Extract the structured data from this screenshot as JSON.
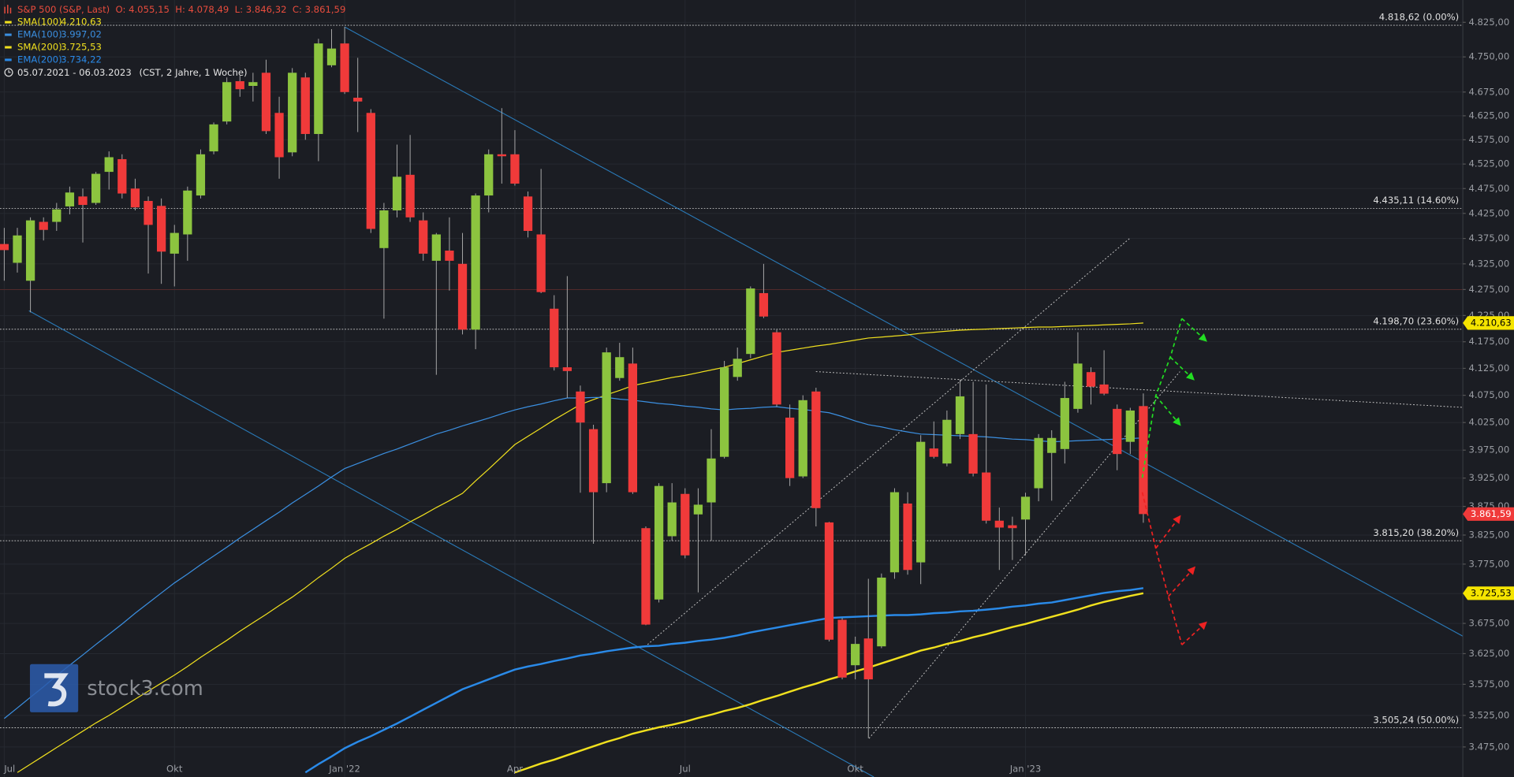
{
  "chart_data": {
    "type": "candlestick",
    "title": "S&P 500 (S&P, Last)",
    "ohlc_labels": [
      "O: 4.055,15",
      "H: 4.078,49",
      "L: 3.846,32",
      "C: 3.861,59"
    ],
    "date_range": "05.07.2021 - 06.03.2023",
    "range_info": "(CST, 2 Jahre, 1 Woche)",
    "watermark": "stock3.com",
    "log_scale": true,
    "grid": true,
    "up_color": "#8cc43f",
    "down_color": "#f03a3a",
    "ylim": [
      3428,
      4874
    ],
    "yticks": [
      {
        "value": 4825,
        "label": "4.825,00"
      },
      {
        "value": 4750,
        "label": "4.750,00"
      },
      {
        "value": 4675,
        "label": "4.675,00"
      },
      {
        "value": 4625,
        "label": "4.625,00"
      },
      {
        "value": 4575,
        "label": "4.575,00"
      },
      {
        "value": 4525,
        "label": "4.525,00"
      },
      {
        "value": 4475,
        "label": "4.475,00"
      },
      {
        "value": 4425,
        "label": "4.425,00"
      },
      {
        "value": 4375,
        "label": "4.375,00"
      },
      {
        "value": 4325,
        "label": "4.325,00"
      },
      {
        "value": 4275,
        "label": "4.275,00"
      },
      {
        "value": 4225,
        "label": "4.225,00"
      },
      {
        "value": 4175,
        "label": "4.175,00"
      },
      {
        "value": 4125,
        "label": "4.125,00"
      },
      {
        "value": 4075,
        "label": "4.075,00"
      },
      {
        "value": 4025,
        "label": "4.025,00"
      },
      {
        "value": 3975,
        "label": "3.975,00"
      },
      {
        "value": 3925,
        "label": "3.925,00"
      },
      {
        "value": 3875,
        "label": "3.875,00"
      },
      {
        "value": 3825,
        "label": "3.825,00"
      },
      {
        "value": 3775,
        "label": "3.775,00"
      },
      {
        "value": 3725,
        "label": "3.725,00"
      },
      {
        "value": 3675,
        "label": "3.675,00"
      },
      {
        "value": 3625,
        "label": "3.625,00"
      },
      {
        "value": 3575,
        "label": "3.575,00"
      },
      {
        "value": 3525,
        "label": "3.525,00"
      },
      {
        "value": 3475,
        "label": "3.475,00"
      }
    ],
    "levels": [
      {
        "value": 4818.62,
        "label": "4.818,62 (0.00%)"
      },
      {
        "value": 4435.11,
        "label": "4.435,11 (14.60%)"
      },
      {
        "value": 4198.7,
        "label": "4.198,70 (23.60%)"
      },
      {
        "value": 3815.2,
        "label": "3.815,20 (38.20%)"
      },
      {
        "value": 3505.24,
        "label": "3.505,24 (50.00%)"
      }
    ],
    "price_tags": [
      {
        "value": 4210.63,
        "label": "4.210,63",
        "color": "#f5e400",
        "text_color": "#000000"
      },
      {
        "value": 3861.59,
        "label": "3.861,59",
        "color": "#f03a3a",
        "text_color": "#ffffff"
      },
      {
        "value": 3725.53,
        "label": "3.725,53",
        "color": "#f5e400",
        "text_color": "#000000"
      }
    ],
    "categories": [
      "Jul",
      null,
      null,
      null,
      null,
      null,
      null,
      null,
      null,
      null,
      null,
      null,
      null,
      "Okt",
      null,
      null,
      null,
      null,
      null,
      null,
      null,
      null,
      null,
      null,
      null,
      null,
      "Jan '22",
      null,
      null,
      null,
      null,
      null,
      null,
      null,
      null,
      null,
      null,
      null,
      null,
      "Apr",
      null,
      null,
      null,
      null,
      null,
      null,
      null,
      null,
      null,
      null,
      null,
      null,
      "Jul",
      null,
      null,
      null,
      null,
      null,
      null,
      null,
      null,
      null,
      null,
      null,
      null,
      "Okt",
      null,
      null,
      null,
      null,
      null,
      null,
      null,
      null,
      null,
      null,
      null,
      null,
      "Jan '23",
      null,
      null,
      null,
      null,
      null,
      null,
      null,
      null,
      null
    ],
    "open": [
      4364,
      4327,
      4292,
      4408,
      4408,
      4439,
      4459,
      4446,
      4509,
      4535,
      4475,
      4450,
      4440,
      4345,
      4383,
      4461,
      4551,
      4613,
      4698,
      4688,
      4716,
      4631,
      4549,
      4706,
      4587,
      4732,
      4779,
      4663,
      4631,
      4356,
      4431,
      4503,
      4411,
      4331,
      4351,
      4325,
      4198,
      4461,
      4545,
      4545,
      4459,
      4383,
      4238,
      4127,
      4082,
      4013,
      3916,
      4107,
      4134,
      3837,
      3715,
      3823,
      3897,
      3861,
      3882,
      3963,
      4109,
      4152,
      4268,
      4193,
      4034,
      3928,
      4082,
      3847,
      3681,
      3606,
      3650,
      3637,
      3761,
      3880,
      3778,
      3978,
      3951,
      4004,
      4004,
      3935,
      3850,
      3842,
      3852,
      3907,
      3970,
      3977,
      4050,
      4118,
      4095,
      4050,
      3990,
      4055.15
    ],
    "high": [
      4396,
      4396,
      4417,
      4417,
      4446,
      4479,
      4475,
      4509,
      4551,
      4545,
      4495,
      4459,
      4455,
      4402,
      4479,
      4555,
      4611,
      4706,
      4710,
      4716,
      4744,
      4665,
      4726,
      4716,
      4789,
      4810,
      4815,
      4748,
      4639,
      4446,
      4565,
      4585,
      4427,
      4386,
      4417,
      4386,
      4465,
      4555,
      4641,
      4595,
      4469,
      4515,
      4264,
      4301,
      4093,
      4021,
      4164,
      4173,
      4164,
      3840,
      3916,
      3916,
      3907,
      3907,
      4013,
      4139,
      4164,
      4281,
      4325,
      4198,
      4058,
      4075,
      4089,
      3848,
      3684,
      3653,
      3750,
      3759,
      3907,
      3900,
      4002,
      4027,
      4047,
      4104,
      4100,
      4095,
      3873,
      3857,
      3899,
      4004,
      4011,
      4100,
      4193,
      4127,
      4159,
      4058,
      4052,
      4078.49
    ],
    "low": [
      4292,
      4308,
      4231,
      4371,
      4390,
      4423,
      4367,
      4442,
      4473,
      4455,
      4431,
      4306,
      4286,
      4281,
      4331,
      4455,
      4545,
      4607,
      4665,
      4655,
      4587,
      4495,
      4541,
      4575,
      4531,
      4728,
      4671,
      4591,
      4386,
      4219,
      4417,
      4408,
      4331,
      4113,
      4273,
      4189,
      4161,
      4427,
      4485,
      4481,
      4377,
      4268,
      4121,
      4070,
      3899,
      3810,
      3900,
      4102,
      3897,
      3672,
      3710,
      3815,
      3785,
      3727,
      3815,
      3960,
      4102,
      4144,
      4220,
      4054,
      3911,
      3925,
      3840,
      3645,
      3583,
      3583,
      3489,
      3634,
      3750,
      3757,
      3741,
      3960,
      3946,
      3995,
      3928,
      3845,
      3765,
      3782,
      3790,
      3884,
      3885,
      3951,
      4043,
      4058,
      4075,
      3939,
      3968,
      3846.32
    ],
    "close": [
      4352,
      4381,
      4411,
      4392,
      4433,
      4467,
      4442,
      4505,
      4539,
      4465,
      4437,
      4402,
      4349,
      4386,
      4471,
      4545,
      4607,
      4696,
      4681,
      4696,
      4593,
      4539,
      4716,
      4587,
      4779,
      4768,
      4675,
      4655,
      4394,
      4431,
      4499,
      4417,
      4345,
      4383,
      4331,
      4198,
      4461,
      4545,
      4541,
      4485,
      4390,
      4270,
      4127,
      4120,
      4025,
      3900,
      4155,
      4146,
      3900,
      3673,
      3911,
      3882,
      3790,
      3878,
      3960,
      4127,
      4143,
      4277,
      4223,
      4058,
      3925,
      4066,
      3872,
      3648,
      3586,
      3641,
      3583,
      3752,
      3900,
      3765,
      3990,
      3963,
      4030,
      4073,
      3933,
      3850,
      3838,
      3837,
      3892,
      3997,
      3997,
      4070,
      4134,
      4091,
      4078,
      3968,
      4047,
      3861.59
    ],
    "series": [
      {
        "name": "SMA(100)",
        "legend_value": "4.210,63",
        "color": "#f0e01e",
        "width": 1,
        "values": [
          null,
          3435,
          3448,
          3461,
          3474,
          3487,
          3500,
          3513,
          3525,
          3538,
          3551,
          3564,
          3577,
          3590,
          3604,
          3619,
          3633,
          3647,
          3662,
          3676,
          3690,
          3705,
          3719,
          3735,
          3752,
          3768,
          3785,
          3798,
          3810,
          3823,
          3835,
          3848,
          3860,
          3873,
          3885,
          3898,
          3920,
          3941,
          3963,
          3985,
          4000,
          4015,
          4030,
          4044,
          4058,
          4067,
          4076,
          4084,
          4093,
          4098,
          4103,
          4108,
          4112,
          4117,
          4122,
          4127,
          4134,
          4141,
          4148,
          4155,
          4159,
          4163,
          4167,
          4170,
          4174,
          4178,
          4182,
          4184,
          4186,
          4188,
          4191,
          4193,
          4195,
          4197,
          4198,
          4199,
          4200,
          4201,
          4202,
          4203,
          4203,
          4204,
          4205,
          4206,
          4207,
          4208,
          4209,
          4210.63
        ]
      },
      {
        "name": "EMA(100)",
        "legend_value": "3.997,02",
        "color": "#3b8fe0",
        "width": 1,
        "values": [
          3520,
          3537,
          3554,
          3571,
          3589,
          3606,
          3623,
          3640,
          3657,
          3674,
          3692,
          3709,
          3726,
          3743,
          3758,
          3774,
          3789,
          3804,
          3820,
          3835,
          3850,
          3865,
          3881,
          3896,
          3911,
          3927,
          3942,
          3951,
          3960,
          3969,
          3977,
          3986,
          3995,
          4004,
          4011,
          4019,
          4026,
          4033,
          4041,
          4048,
          4054,
          4059,
          4065,
          4070,
          4070,
          4071,
          4071,
          4068,
          4066,
          4063,
          4060,
          4058,
          4055,
          4053,
          4050,
          4048,
          4050,
          4051,
          4053,
          4054,
          4051,
          4049,
          4046,
          4043,
          4036,
          4028,
          4021,
          4017,
          4012,
          4008,
          4004,
          4003,
          4002,
          4001,
          4000,
          3999,
          3997,
          3995,
          3994,
          3992,
          3990,
          3991,
          3992,
          3993,
          3994,
          3995,
          3996,
          3997.02
        ]
      },
      {
        "name": "SMA(200)",
        "legend_value": "3.725,53",
        "color": "#f0e01e",
        "width": 2,
        "values": [
          null,
          null,
          null,
          null,
          null,
          null,
          null,
          null,
          null,
          null,
          null,
          null,
          null,
          null,
          null,
          null,
          null,
          null,
          null,
          null,
          null,
          null,
          null,
          null,
          null,
          null,
          null,
          null,
          null,
          null,
          null,
          null,
          null,
          null,
          null,
          null,
          null,
          null,
          null,
          3435,
          3442,
          3449,
          3455,
          3462,
          3469,
          3476,
          3483,
          3489,
          3496,
          3501,
          3506,
          3510,
          3515,
          3521,
          3526,
          3532,
          3537,
          3543,
          3550,
          3556,
          3563,
          3570,
          3576,
          3583,
          3589,
          3596,
          3602,
          3609,
          3616,
          3623,
          3630,
          3635,
          3641,
          3646,
          3652,
          3657,
          3663,
          3669,
          3674,
          3680,
          3686,
          3692,
          3698,
          3705,
          3711,
          3716,
          3721,
          3725.53
        ]
      },
      {
        "name": "EMA(200)",
        "legend_value": "3.734,22",
        "color": "#2a8ae8",
        "width": 2,
        "values": [
          null,
          null,
          null,
          null,
          null,
          null,
          null,
          null,
          null,
          null,
          null,
          null,
          null,
          null,
          null,
          null,
          null,
          null,
          null,
          null,
          null,
          null,
          null,
          3435,
          3448,
          3460,
          3473,
          3483,
          3492,
          3502,
          3512,
          3523,
          3534,
          3545,
          3556,
          3567,
          3575,
          3583,
          3591,
          3599,
          3604,
          3608,
          3613,
          3617,
          3622,
          3625,
          3629,
          3632,
          3635,
          3637,
          3638,
          3641,
          3643,
          3646,
          3648,
          3651,
          3655,
          3660,
          3664,
          3668,
          3672,
          3676,
          3680,
          3684,
          3685,
          3686,
          3687,
          3688,
          3689,
          3689,
          3690,
          3692,
          3693,
          3695,
          3696,
          3698,
          3700,
          3703,
          3705,
          3708,
          3710,
          3714,
          3718,
          3722,
          3726,
          3729,
          3731,
          3734.22
        ]
      }
    ]
  }
}
